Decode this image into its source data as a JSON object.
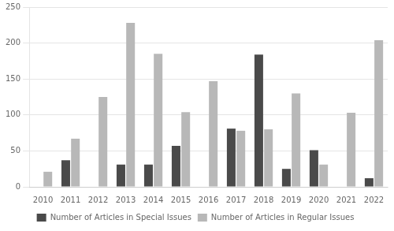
{
  "chart_data": {
    "type": "bar",
    "categories": [
      "2010",
      "2011",
      "2012",
      "2013",
      "2014",
      "2015",
      "2016",
      "2017",
      "2018",
      "2019",
      "2020",
      "2021",
      "2022"
    ],
    "series": [
      {
        "name": "Number of Articles in Special Issues",
        "color": "#4a4a4a",
        "values": [
          0,
          37,
          0,
          31,
          31,
          57,
          0,
          81,
          184,
          25,
          51,
          0,
          12
        ]
      },
      {
        "name": "Number of Articles in Regular Issues",
        "color": "#b8b8b8",
        "values": [
          21,
          67,
          125,
          228,
          185,
          104,
          147,
          78,
          80,
          130,
          31,
          103,
          204
        ]
      }
    ],
    "ylim": [
      0,
      250
    ],
    "yticks": [
      0,
      50,
      100,
      150,
      200,
      250
    ],
    "grid": true,
    "legend": "bottom"
  }
}
